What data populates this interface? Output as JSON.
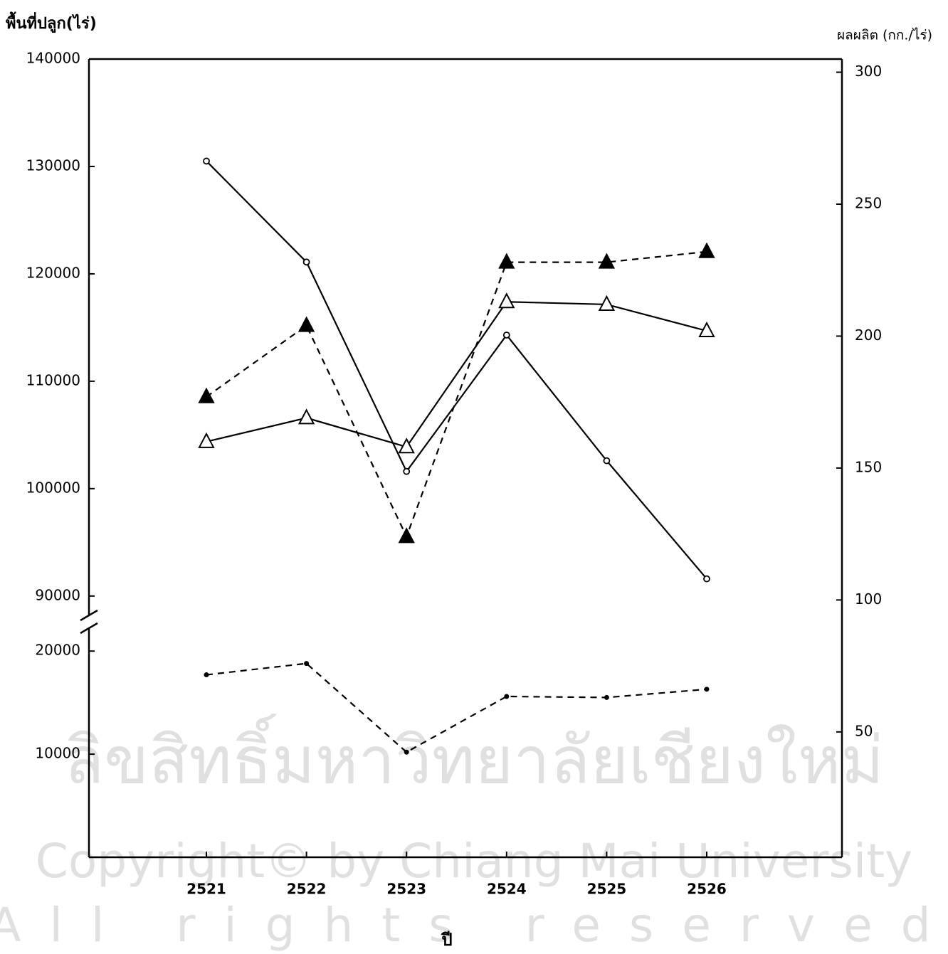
{
  "chart_data": {
    "type": "line",
    "ylabel": "พื้นที่ปลูก(ไร่)",
    "y2label": "ผลผลิต (กก./ไร่)",
    "xlabel": "ปี",
    "watermark": [
      "ลิขสิทธิ์มหาวิทยาลัยเชียงใหม่",
      "Copyright© by Chiang Mai University",
      "All rights reserved"
    ],
    "categories": [
      "2521",
      "2522",
      "2523",
      "2524",
      "2525",
      "2526"
    ],
    "y_segments": [
      {
        "ylim": [
          0,
          22500
        ],
        "yticks": [
          10000,
          20000
        ]
      },
      {
        "ylim": [
          88000,
          140000
        ],
        "yticks": [
          90000,
          100000,
          110000,
          120000,
          130000,
          140000
        ]
      }
    ],
    "y2lim": [
      2.5,
      305
    ],
    "y2ticks": [
      50,
      100,
      150,
      200,
      250,
      300
    ],
    "series": [
      {
        "axis": "y",
        "segment": 1,
        "marker": "circle-open",
        "dashed": false,
        "color": "#000000",
        "values": [
          130500,
          121100,
          101600,
          114300,
          102600,
          91600
        ]
      },
      {
        "axis": "y2",
        "marker": "triangle-open",
        "dashed": false,
        "color": "#000000",
        "values": [
          160,
          169,
          158,
          213,
          212,
          202
        ]
      },
      {
        "axis": "y2",
        "marker": "triangle-filled",
        "dashed": true,
        "color": "#000000",
        "values": [
          177,
          204,
          124,
          228,
          228,
          232
        ]
      },
      {
        "axis": "y",
        "segment": 0,
        "marker": "dot",
        "dashed": true,
        "color": "#000000",
        "values": [
          17700,
          18800,
          10200,
          15600,
          15500,
          16300
        ]
      }
    ]
  }
}
